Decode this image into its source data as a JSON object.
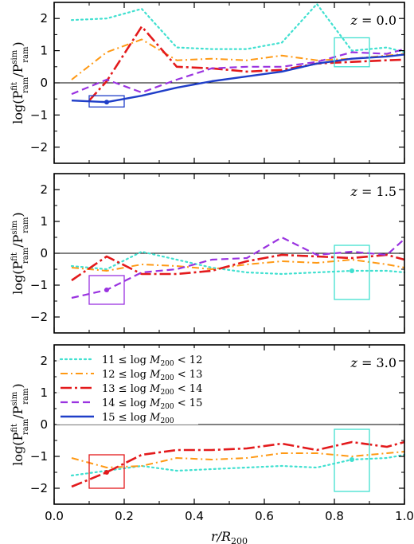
{
  "chart_data": [
    {
      "type": "line",
      "annotation": "z = 0.0",
      "xlim": [
        0.0,
        1.0
      ],
      "ylim": [
        -2.5,
        2.5
      ],
      "xticks": [
        0.0,
        0.2,
        0.4,
        0.6,
        0.8,
        1.0
      ],
      "yticks": [
        -2,
        -1,
        0,
        1,
        2
      ],
      "ylabel": "log(P_ram^fit / P_ram^sim)",
      "hline": 0,
      "series": [
        {
          "name": "11 ≤ log M200 < 12",
          "color": "#40e0d0",
          "style": "dotted",
          "x": [
            0.05,
            0.15,
            0.25,
            0.35,
            0.45,
            0.55,
            0.65,
            0.75,
            0.85,
            0.95,
            1.0
          ],
          "y": [
            1.95,
            2.0,
            2.3,
            1.1,
            1.05,
            1.05,
            1.25,
            2.45,
            1.0,
            1.1,
            0.95
          ]
        },
        {
          "name": "12 ≤ log M200 < 13",
          "color": "#ff9914",
          "style": "dashdot",
          "x": [
            0.05,
            0.15,
            0.25,
            0.35,
            0.45,
            0.55,
            0.65,
            0.75,
            0.85,
            0.95,
            1.0
          ],
          "y": [
            0.1,
            0.95,
            1.35,
            0.7,
            0.75,
            0.7,
            0.85,
            0.7,
            0.75,
            0.85,
            0.9
          ]
        },
        {
          "name": "13 ≤ log M200 < 14",
          "color": "#e31a1c",
          "style": "dashdotbold",
          "x": [
            0.1,
            0.15,
            0.25,
            0.35,
            0.45,
            0.55,
            0.65,
            0.75,
            0.85,
            0.95,
            1.0
          ],
          "y": [
            -0.55,
            0.05,
            1.75,
            0.5,
            0.45,
            0.35,
            0.4,
            0.6,
            0.65,
            0.7,
            0.72
          ]
        },
        {
          "name": "14 ≤ log M200 < 15",
          "color": "#9a33e0",
          "style": "dashed",
          "x": [
            0.05,
            0.15,
            0.25,
            0.35,
            0.45,
            0.55,
            0.65,
            0.75,
            0.85,
            0.95,
            1.0
          ],
          "y": [
            -0.35,
            0.1,
            -0.3,
            0.1,
            0.45,
            0.5,
            0.5,
            0.65,
            0.95,
            0.9,
            1.05
          ]
        },
        {
          "name": "15 ≤ log M200",
          "color": "#1f3ec8",
          "style": "solid",
          "x": [
            0.05,
            0.15,
            0.25,
            0.35,
            0.45,
            0.55,
            0.65,
            0.75,
            0.85,
            0.95,
            1.0
          ],
          "y": [
            -0.55,
            -0.6,
            -0.4,
            -0.15,
            0.05,
            0.2,
            0.35,
            0.6,
            0.75,
            0.82,
            0.88
          ]
        }
      ],
      "points": [
        {
          "x": 0.15,
          "y": -0.6,
          "color": "#1f3ec8"
        }
      ],
      "boxes": [
        {
          "x0": 0.1,
          "x1": 0.2,
          "y0": -0.75,
          "y1": -0.4,
          "color": "#1f3ec8"
        },
        {
          "x0": 0.8,
          "x1": 0.9,
          "y0": 0.5,
          "y1": 1.4,
          "color": "#40e0d0"
        }
      ]
    },
    {
      "type": "line",
      "annotation": "z = 1.5",
      "xlim": [
        0.0,
        1.0
      ],
      "ylim": [
        -2.5,
        2.5
      ],
      "xticks": [
        0.0,
        0.2,
        0.4,
        0.6,
        0.8,
        1.0
      ],
      "yticks": [
        -2,
        -1,
        0,
        1,
        2
      ],
      "ylabel": "log(P_ram^fit / P_ram^sim)",
      "hline": 0,
      "series": [
        {
          "name": "11 ≤ log M200 < 12",
          "color": "#40e0d0",
          "style": "dotted",
          "x": [
            0.05,
            0.15,
            0.25,
            0.35,
            0.45,
            0.55,
            0.65,
            0.75,
            0.85,
            0.95,
            1.0
          ],
          "y": [
            -0.4,
            -0.5,
            0.05,
            -0.2,
            -0.45,
            -0.6,
            -0.65,
            -0.6,
            -0.55,
            -0.55,
            -0.6
          ]
        },
        {
          "name": "12 ≤ log M200 < 13",
          "color": "#ff9914",
          "style": "dashdot",
          "x": [
            0.05,
            0.15,
            0.25,
            0.35,
            0.45,
            0.55,
            0.65,
            0.75,
            0.85,
            0.95,
            1.0
          ],
          "y": [
            -0.45,
            -0.55,
            -0.35,
            -0.4,
            -0.5,
            -0.35,
            -0.25,
            -0.3,
            -0.2,
            -0.35,
            -0.45
          ]
        },
        {
          "name": "13 ≤ log M200 < 14",
          "color": "#e31a1c",
          "style": "dashdotbold",
          "x": [
            0.05,
            0.15,
            0.25,
            0.35,
            0.45,
            0.55,
            0.65,
            0.75,
            0.85,
            0.95,
            1.0
          ],
          "y": [
            -0.85,
            -0.1,
            -0.65,
            -0.65,
            -0.55,
            -0.25,
            -0.05,
            -0.1,
            -0.15,
            -0.05,
            -0.2
          ]
        },
        {
          "name": "14 ≤ log M200 < 15",
          "color": "#9a33e0",
          "style": "dashed",
          "x": [
            0.05,
            0.15,
            0.25,
            0.35,
            0.45,
            0.55,
            0.65,
            0.75,
            0.85,
            0.95,
            1.0
          ],
          "y": [
            -1.4,
            -1.15,
            -0.6,
            -0.5,
            -0.2,
            -0.15,
            0.5,
            -0.05,
            0.05,
            -0.05,
            0.45
          ]
        }
      ],
      "points": [
        {
          "x": 0.15,
          "y": -1.15,
          "color": "#9a33e0"
        },
        {
          "x": 0.85,
          "y": -0.55,
          "color": "#40e0d0"
        }
      ],
      "boxes": [
        {
          "x0": 0.1,
          "x1": 0.2,
          "y0": -1.6,
          "y1": -0.7,
          "color": "#9a33e0"
        },
        {
          "x0": 0.8,
          "x1": 0.9,
          "y0": -1.45,
          "y1": 0.25,
          "color": "#40e0d0"
        }
      ]
    },
    {
      "type": "line",
      "annotation": "z = 3.0",
      "xlim": [
        0.0,
        1.0
      ],
      "ylim": [
        -2.5,
        2.5
      ],
      "xticks": [
        0.0,
        0.2,
        0.4,
        0.6,
        0.8,
        1.0
      ],
      "xticklabels": [
        "0.0",
        "0.2",
        "0.4",
        "0.6",
        "0.8",
        "1.0"
      ],
      "yticks": [
        -2,
        -1,
        0,
        1,
        2
      ],
      "ylabel": "log(P_ram^fit / P_ram^sim)",
      "xlabel": "r/R200",
      "hline": 0,
      "legend": "top-left",
      "series": [
        {
          "name": "11 ≤ log M200 < 12",
          "color": "#40e0d0",
          "style": "dotted",
          "x": [
            0.05,
            0.15,
            0.25,
            0.35,
            0.45,
            0.55,
            0.65,
            0.75,
            0.85,
            0.95,
            1.0
          ],
          "y": [
            -1.6,
            -1.45,
            -1.3,
            -1.45,
            -1.4,
            -1.35,
            -1.3,
            -1.35,
            -1.1,
            -1.05,
            -0.95
          ]
        },
        {
          "name": "12 ≤ log M200 < 13",
          "color": "#ff9914",
          "style": "dashdot",
          "x": [
            0.05,
            0.15,
            0.25,
            0.35,
            0.45,
            0.55,
            0.65,
            0.75,
            0.85,
            0.95,
            1.0
          ],
          "y": [
            -1.05,
            -1.35,
            -1.3,
            -1.05,
            -1.1,
            -1.05,
            -0.9,
            -0.9,
            -1.0,
            -0.9,
            -0.85
          ]
        },
        {
          "name": "13 ≤ log M200 < 14",
          "color": "#e31a1c",
          "style": "dashdotbold",
          "x": [
            0.05,
            0.15,
            0.25,
            0.35,
            0.45,
            0.55,
            0.65,
            0.75,
            0.85,
            0.95,
            1.0
          ],
          "y": [
            -1.95,
            -1.5,
            -0.95,
            -0.8,
            -0.8,
            -0.75,
            -0.6,
            -0.8,
            -0.55,
            -0.7,
            -0.55
          ]
        },
        {
          "name": "14 ≤ log M200 < 15",
          "color": "#9a33e0",
          "style": "dashed",
          "x": [],
          "y": []
        },
        {
          "name": "15 ≤ log M200",
          "color": "#1f3ec8",
          "style": "solid",
          "x": [],
          "y": []
        }
      ],
      "points": [
        {
          "x": 0.15,
          "y": -1.5,
          "color": "#e31a1c"
        },
        {
          "x": 0.85,
          "y": -1.1,
          "color": "#40e0d0"
        }
      ],
      "boxes": [
        {
          "x0": 0.1,
          "x1": 0.2,
          "y0": -2.0,
          "y1": -0.95,
          "color": "#e31a1c"
        },
        {
          "x0": 0.8,
          "x1": 0.9,
          "y0": -2.1,
          "y1": -0.15,
          "color": "#40e0d0"
        }
      ]
    }
  ]
}
